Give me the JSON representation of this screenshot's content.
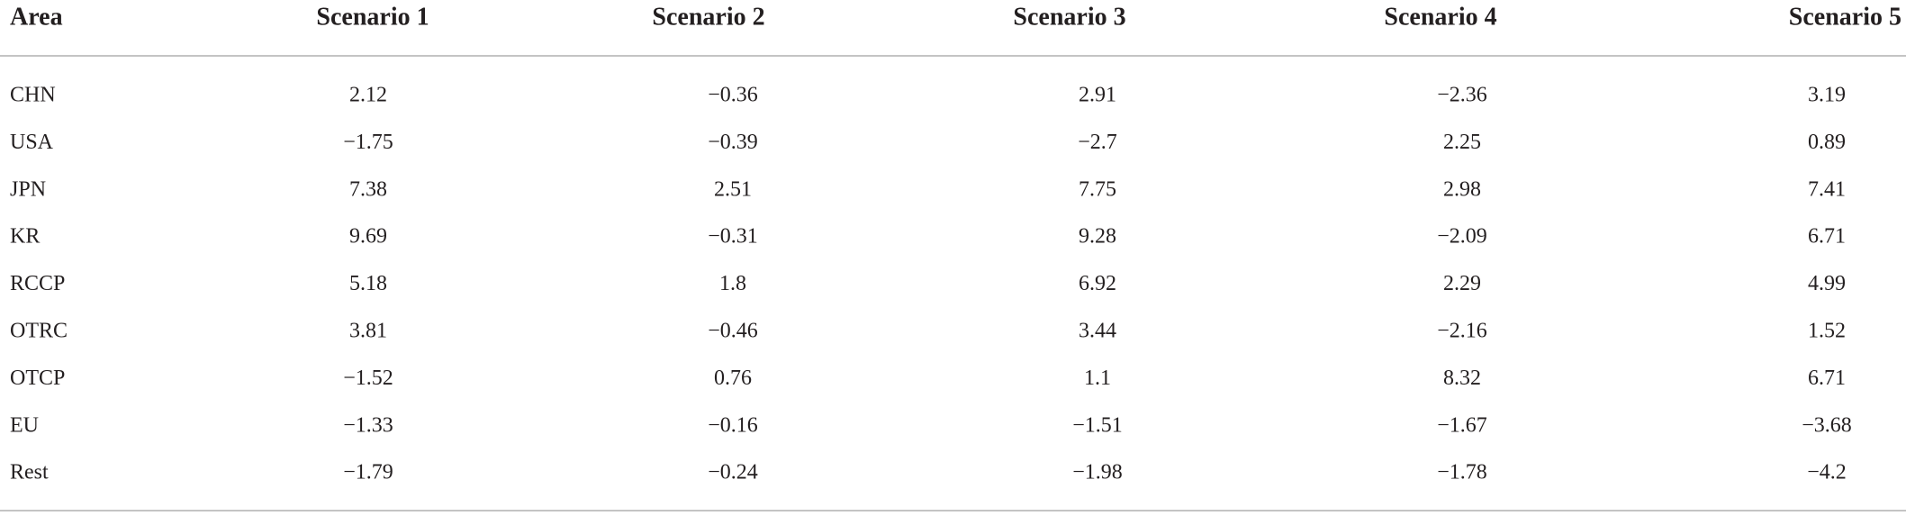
{
  "table": {
    "header": [
      "Area",
      "Scenario 1",
      "Scenario 2",
      "Scenario 3",
      "Scenario 4",
      "Scenario 5"
    ],
    "rows": [
      [
        "CHN",
        "2.12",
        "−0.36",
        "2.91",
        "−2.36",
        "3.19"
      ],
      [
        "USA",
        "−1.75",
        "−0.39",
        "−2.7",
        "2.25",
        "0.89"
      ],
      [
        "JPN",
        "7.38",
        "2.51",
        "7.75",
        "2.98",
        "7.41"
      ],
      [
        "KR",
        "9.69",
        "−0.31",
        "9.28",
        "−2.09",
        "6.71"
      ],
      [
        "RCCP",
        "5.18",
        "1.8",
        "6.92",
        "2.29",
        "4.99"
      ],
      [
        "OTRC",
        "3.81",
        "−0.46",
        "3.44",
        "−2.16",
        "1.52"
      ],
      [
        "OTCP",
        "−1.52",
        "0.76",
        "1.1",
        "8.32",
        "6.71"
      ],
      [
        "EU",
        "−1.33",
        "−0.16",
        "−1.51",
        "−1.67",
        "−3.68"
      ],
      [
        "Rest",
        "−1.79",
        "−0.24",
        "−1.98",
        "−1.78",
        "−4.2"
      ]
    ]
  }
}
